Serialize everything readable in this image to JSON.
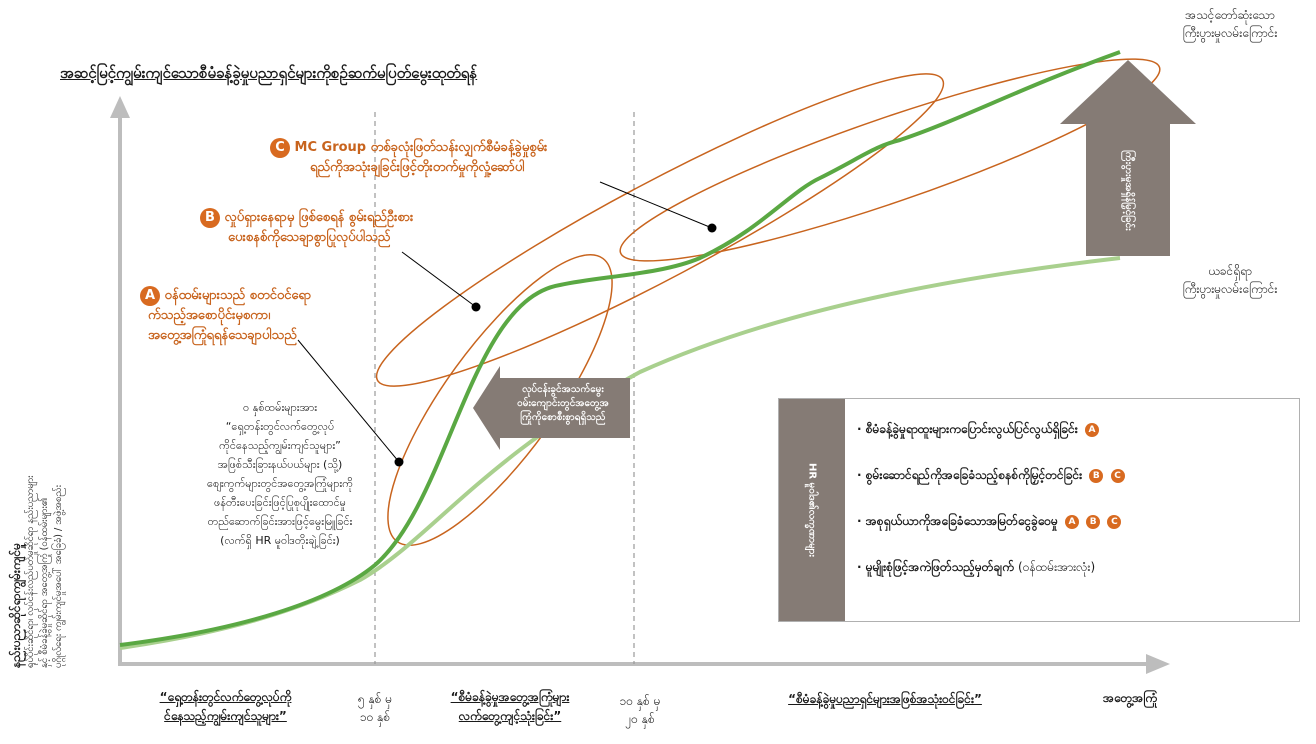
{
  "title": "အဆင့်မြင့်ကျွမ်းကျင်သောစီမံခန့်ခွဲမှုပညာရှင်များကိုစဉ်ဆက်မပြတ်မွေးထုတ်ရန်",
  "y_axis": {
    "title": "နည်းပညာဆိုင်ရာကျွမ်းကျင်မှု",
    "lines": [
      "ရုပ်ပိုင်းဆိုင်ရာ၊ လုပ်ငန်းလည်ပတ်မှုဆိုင်ရာ နည်းပညာများ",
      "နှင့် စီမံခန့်ခွဲမှုဆိုင်ရာ အတွေ့အကြုံ (ဝန်ထမ်းများ၏",
      "ပုဂ္ဂိုလ်ရေး ကျွမ်းကျင်မှုအပေါ် အခြေခံ) / အဖွဲ့အစည်း"
    ]
  },
  "callouts": {
    "a": {
      "badge": "A",
      "lines": [
        "ဝန်ထမ်းများသည် စတင်ဝင်ရော",
        "က်သည့်အစောပိုင်းမှစကာ၊",
        "အတွေ့အကြုံရရန်သေချာပါသည်"
      ]
    },
    "b": {
      "badge": "B",
      "lines": [
        "လှုပ်ရှားနေရာမှ ဖြစ်စေရန် စွမ်းရည်ဦးစား",
        "ပေးစနစ်ကိုသေချာစွာပြုလုပ်ပါသည်"
      ]
    },
    "c": {
      "badge": "C",
      "lines": [
        "MC Group တစ်ခုလုံးဖြတ်သန်းလျှက်စီမံခန့်ခွဲမှုစွမ်း",
        "ရည်ကိုအသုံးချခြင်းဖြင့်တိုးတက်မှုကိုလှုံ့ဆော်ပါ"
      ]
    }
  },
  "note": {
    "lines": [
      "၀ နှစ်ထမ်းများအား",
      "“ရှေ့တန်းတွင်လက်တွေ့လုပ်",
      "ကိုင်နေသည့်ကျွမ်းကျင်သူများ”",
      "အဖြစ်သီးခြားနယ်ပယ်များ (သို့)",
      "စျေးကွက်များတွင်အတွေ့အကြုံများကို",
      "ဖန်တီးပေးခြင်းဖြင့်ပြုစုပျိုးထောင်မှု",
      "တည်ဆောက်ခြင်းအားဖြင့်မွေးမြူခြင်း",
      "(လက်ရှိ HR မူဝါဒတိုးချဲ့ခြင်း)"
    ]
  },
  "middle_arrow": {
    "lines": [
      "လုပ်ငန်းခွင်အသက်မွေး",
      "ဝမ်းကျောင်းတွင်အတွေ့အ",
      "ကြုံကိုစောစီးစွာရရှိသည်"
    ]
  },
  "legend": {
    "side_label": "HR မူဝါဒ၏လက္ခဏာများ",
    "items": [
      {
        "text": "စီမံခန့်ခွဲမှုရာထူးများကပြောင်းလွယ်ပြင်လွယ်ရှိခြင်း",
        "badges": [
          "A"
        ],
        "tail": ""
      },
      {
        "text": "စွမ်းဆောင်ရည်ကိုအခြေခံသည့်စနစ်ကိုမြှင့်တင်ခြင်း",
        "badges": [
          "B",
          "C"
        ],
        "tail": ""
      },
      {
        "text": "အစုရှယ်ယာကိုအခြေခံသောအမြတ်ငွေခွဲဝေမှု",
        "badges": [
          "A",
          "B",
          "C"
        ],
        "tail": ""
      },
      {
        "text": "မူမျိုးစုံဖြင့်အကဲဖြတ်သည့်မှတ်ချက်",
        "badges": [],
        "tail": "(ဝန်ထမ်းအားလုံး)"
      }
    ]
  },
  "right": {
    "top_label": [
      "အသင့်တော်ဆုံးသော",
      "ကြီးပွားမှုလမ်းကြောင်း"
    ],
    "bottom_label": [
      "ယခင်ရှိရာ",
      "ကြီးပွားမှုလမ်းကြောင်း"
    ],
    "up_arrow_label": "ကြီးပွားမှုအရှိန်မြှင့်ခြင်း"
  },
  "x_axis": {
    "stages": [
      {
        "lines": [
          "“ရှေ့တန်းတွင်လက်တွေ့လုပ်ကို",
          "င်နေသည့်ကျွမ်းကျင်သူများ”"
        ]
      },
      {
        "lines": [
          "“စီမံခန့်ခွဲမှုအတွေ့အကြုံများ",
          "လက်တွေ့ကျင့်သုံးခြင်း”"
        ]
      },
      {
        "lines": [
          "“စီမံခန့်ခွဲမှုပညာရှင်များအဖြစ်အသုံးဝင်ခြင်း”"
        ]
      }
    ],
    "years": [
      {
        "lines": [
          "၅ နှစ် မှ",
          "၁၀ နှစ်"
        ]
      },
      {
        "lines": [
          "၁၀ နှစ် မှ",
          "၂၀ နှစ်"
        ]
      }
    ],
    "end_label": "အတွေ့အကြုံ"
  },
  "colors": {
    "orange": "#c8641e",
    "green_dark": "#5aa843",
    "green_light": "#a9d08e",
    "gray_arrow": "#857b75",
    "axis": "#bdbdbd"
  }
}
